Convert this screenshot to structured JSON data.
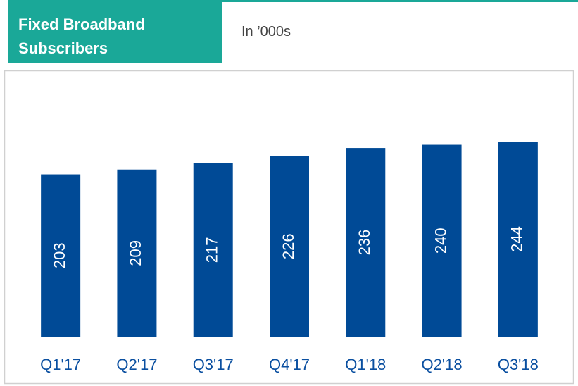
{
  "chart_data": {
    "type": "bar",
    "title": "Fixed Broadband Subscribers",
    "subtitle": "In ’000s",
    "categories": [
      "Q1'17",
      "Q2'17",
      "Q3'17",
      "Q4'17",
      "Q1'18",
      "Q2'18",
      "Q3'18"
    ],
    "values": [
      203,
      209,
      217,
      226,
      236,
      240,
      244
    ],
    "color": "#004a96"
  }
}
